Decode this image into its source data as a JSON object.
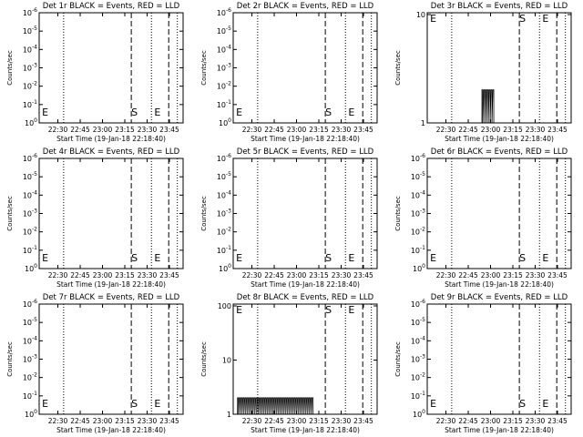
{
  "figure": {
    "background": "#ffffff",
    "axis_color": "#000000",
    "marker_color": "#000000"
  },
  "chart_data": [
    {
      "type": "line",
      "title": "Det 1r BLACK = Events, RED = LLD",
      "xlabel": "Start Time (19-Jan-18 22:18:40)",
      "ylabel": "Counts/sec",
      "xticks": [
        "22:30",
        "22:45",
        "23:00",
        "23:15",
        "23:30",
        "23:45"
      ],
      "yscale": "log",
      "yticklabels": [
        "10^0",
        "10^-1",
        "10^-2",
        "10^-3",
        "10^-4",
        "10^-5",
        "10^-6"
      ],
      "markers": [
        {
          "label": "E",
          "pos": "left"
        },
        {
          "label": "S",
          "pos": "middle"
        },
        {
          "label": "E",
          "pos": "right"
        }
      ],
      "series": []
    },
    {
      "type": "line",
      "title": "Det 2r BLACK = Events, RED = LLD",
      "xlabel": "Start Time (19-Jan-18 22:18:40)",
      "ylabel": "Counts/sec",
      "xticks": [
        "22:30",
        "22:45",
        "23:00",
        "23:15",
        "23:30",
        "23:45"
      ],
      "yscale": "log",
      "yticklabels": [
        "10^0",
        "10^-1",
        "10^-2",
        "10^-3",
        "10^-4",
        "10^-5",
        "10^-6"
      ],
      "markers": [
        {
          "label": "E",
          "pos": "left"
        },
        {
          "label": "S",
          "pos": "middle"
        },
        {
          "label": "E",
          "pos": "right"
        }
      ],
      "series": []
    },
    {
      "type": "line",
      "title": "Det 3r BLACK = Events, RED = LLD",
      "xlabel": "Start Time (19-Jan-18 22:18:40)",
      "ylabel": "Counts/sec",
      "xticks": [
        "22:30",
        "22:45",
        "23:00",
        "23:15",
        "23:30",
        "23:45"
      ],
      "yscale": "log",
      "yticklabels": [
        "1",
        "10"
      ],
      "markers": [
        {
          "label": "E",
          "pos": "left"
        },
        {
          "label": "S",
          "pos": "middle"
        },
        {
          "label": "E",
          "pos": "right"
        }
      ],
      "series": [
        {
          "kind": "bursts",
          "x_range": [
            0.38,
            0.46
          ],
          "level": 0.3
        }
      ]
    },
    {
      "type": "line",
      "title": "Det 4r BLACK = Events, RED = LLD",
      "xlabel": "Start Time (19-Jan-18 22:18:40)",
      "ylabel": "Counts/sec",
      "xticks": [
        "22:30",
        "22:45",
        "23:00",
        "23:15",
        "23:30",
        "23:45"
      ],
      "yscale": "log",
      "yticklabels": [
        "10^0",
        "10^-1",
        "10^-2",
        "10^-3",
        "10^-4",
        "10^-5",
        "10^-6"
      ],
      "markers": [
        {
          "label": "E",
          "pos": "left"
        },
        {
          "label": "S",
          "pos": "middle"
        },
        {
          "label": "E",
          "pos": "right"
        }
      ],
      "series": []
    },
    {
      "type": "line",
      "title": "Det 5r BLACK = Events, RED = LLD",
      "xlabel": "Start Time (19-Jan-18 22:18:40)",
      "ylabel": "Counts/sec",
      "xticks": [
        "22:30",
        "22:45",
        "23:00",
        "23:15",
        "23:30",
        "23:45"
      ],
      "yscale": "log",
      "yticklabels": [
        "10^0",
        "10^-1",
        "10^-2",
        "10^-3",
        "10^-4",
        "10^-5",
        "10^-6"
      ],
      "markers": [
        {
          "label": "E",
          "pos": "left"
        },
        {
          "label": "S",
          "pos": "middle"
        },
        {
          "label": "E",
          "pos": "right"
        }
      ],
      "series": []
    },
    {
      "type": "line",
      "title": "Det 6r BLACK = Events, RED = LLD",
      "xlabel": "Start Time (19-Jan-18 22:18:40)",
      "ylabel": "Counts/sec",
      "xticks": [
        "22:30",
        "22:45",
        "23:00",
        "23:15",
        "23:30",
        "23:45"
      ],
      "yscale": "log",
      "yticklabels": [
        "10^0",
        "10^-1",
        "10^-2",
        "10^-3",
        "10^-4",
        "10^-5",
        "10^-6"
      ],
      "markers": [
        {
          "label": "E",
          "pos": "left"
        },
        {
          "label": "S",
          "pos": "middle"
        },
        {
          "label": "E",
          "pos": "right"
        }
      ],
      "series": []
    },
    {
      "type": "line",
      "title": "Det 7r BLACK = Events, RED = LLD",
      "xlabel": "Start Time (19-Jan-18 22:18:40)",
      "ylabel": "Counts/sec",
      "xticks": [
        "22:30",
        "22:45",
        "23:00",
        "23:15",
        "23:30",
        "23:45"
      ],
      "yscale": "log",
      "yticklabels": [
        "10^0",
        "10^-1",
        "10^-2",
        "10^-3",
        "10^-4",
        "10^-5",
        "10^-6"
      ],
      "markers": [
        {
          "label": "E",
          "pos": "left"
        },
        {
          "label": "S",
          "pos": "middle"
        },
        {
          "label": "E",
          "pos": "right"
        }
      ],
      "series": []
    },
    {
      "type": "line",
      "title": "Det 8r BLACK = Events, RED = LLD",
      "xlabel": "Start Time (19-Jan-18 22:18:40)",
      "ylabel": "Counts/sec",
      "xticks": [
        "22:30",
        "22:45",
        "23:00",
        "23:15",
        "23:30",
        "23:45"
      ],
      "yscale": "log",
      "yticklabels": [
        "1",
        "10",
        "100"
      ],
      "markers": [
        {
          "label": "E",
          "pos": "left"
        },
        {
          "label": "S",
          "pos": "middle"
        },
        {
          "label": "E",
          "pos": "right"
        }
      ],
      "series": [
        {
          "kind": "bursts",
          "x_range": [
            0.03,
            0.55
          ],
          "level": 0.15
        }
      ]
    },
    {
      "type": "line",
      "title": "Det 9r BLACK = Events, RED = LLD",
      "xlabel": "Start Time (19-Jan-18 22:18:40)",
      "ylabel": "Counts/sec",
      "xticks": [
        "22:30",
        "22:45",
        "23:00",
        "23:15",
        "23:30",
        "23:45"
      ],
      "yscale": "log",
      "yticklabels": [
        "10^0",
        "10^-1",
        "10^-2",
        "10^-3",
        "10^-4",
        "10^-5",
        "10^-6"
      ],
      "markers": [
        {
          "label": "E",
          "pos": "left"
        },
        {
          "label": "S",
          "pos": "middle"
        },
        {
          "label": "E",
          "pos": "right"
        }
      ],
      "series": []
    }
  ]
}
